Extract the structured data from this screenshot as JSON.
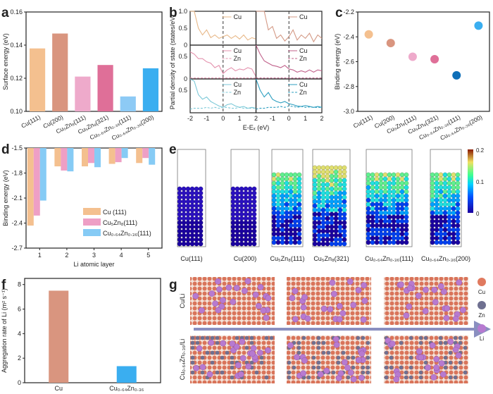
{
  "panel_labels": [
    "a",
    "b",
    "c",
    "d",
    "e",
    "f",
    "g"
  ],
  "chart_data": [
    {
      "id": "a",
      "type": "bar",
      "categories": [
        "Cu(111)",
        "Cu(200)",
        "Cu₅Zn₈(111)",
        "Cu₅Zn₈(321)",
        "Cu₀.₆₄Zn₀.₃₆(111)",
        "Cu₀.₆₄Zn₀.₃₆(200)"
      ],
      "values": [
        0.138,
        0.147,
        0.121,
        0.128,
        0.109,
        0.126
      ],
      "colors": [
        "#f4c08f",
        "#d9957f",
        "#eeaacb",
        "#df6f98",
        "#8dcaf5",
        "#3aaef0"
      ],
      "ylabel": "Surface energy (eV)",
      "ylim": [
        0.1,
        0.16
      ],
      "yticks": [
        "0.10",
        "0.12",
        "0.14",
        "0.16"
      ]
    },
    {
      "id": "b",
      "type": "line",
      "xlabel": "E-Eₓ (eV)",
      "ylabel": "Partial density of state (states/eV)",
      "xlim": [
        -2,
        2
      ],
      "xticks": [
        "-2",
        "-1",
        "0",
        "1",
        "2"
      ],
      "yticks_top": [
        "0",
        "0.5",
        "1.0"
      ],
      "yticks_mid": [
        "0",
        "0.5"
      ],
      "yticks_bot": [
        "0.5"
      ],
      "x": [
        -2,
        -1.75,
        -1.5,
        -1.25,
        -1,
        -0.75,
        -0.5,
        -0.25,
        0,
        0.25,
        0.5,
        0.75,
        1,
        1.25,
        1.5,
        1.75,
        2
      ],
      "panels": [
        {
          "series": [
            {
              "name": "Cu",
              "color": "#e8b888",
              "values": [
                1.2,
                1.2,
                0.5,
                0.3,
                0.45,
                0.22,
                0.3,
                0.2,
                0.25,
                0.3,
                0.2,
                0.28,
                0.18,
                0.3,
                0.15,
                0.22,
                0.18
              ]
            }
          ]
        },
        {
          "series": [
            {
              "name": "Cu",
              "color": "#d49a86",
              "values": [
                1.2,
                1.2,
                1.0,
                0.45,
                0.55,
                0.2,
                0.3,
                0.12,
                0.25,
                0.45,
                0.15,
                0.3,
                0.2,
                0.35,
                0.1,
                0.3,
                0.2
              ]
            }
          ]
        },
        {
          "series": [
            {
              "name": "Cu",
              "color": "#e491ad",
              "values": [
                0.6,
                0.55,
                0.45,
                0.45,
                0.38,
                0.35,
                0.25,
                0.3,
                0.12,
                0.2,
                0.25,
                0.18,
                0.22,
                0.2,
                0.25,
                0.22,
                0.05
              ]
            },
            {
              "name": "Zn",
              "color": "#e491ad",
              "dash": true,
              "values": [
                0.02,
                0.02,
                0.02,
                0.02,
                0.02,
                0.02,
                0.02,
                0.02,
                0.02,
                0.02,
                0.02,
                0.02,
                0.02,
                0.02,
                0.02,
                0.02,
                0.02
              ]
            }
          ]
        },
        {
          "series": [
            {
              "name": "Cu",
              "color": "#c0608a",
              "values": [
                0.8,
                0.55,
                0.4,
                0.35,
                0.3,
                0.28,
                0.25,
                0.3,
                0.22,
                0.2,
                0.15,
                0.18,
                0.15,
                0.2,
                0.15,
                0.2,
                0.18
              ]
            },
            {
              "name": "Zn",
              "color": "#c0608a",
              "dash": true,
              "values": [
                0.02,
                0.02,
                0.02,
                0.02,
                0.02,
                0.02,
                0.02,
                0.02,
                0.02,
                0.02,
                0.02,
                0.02,
                0.02,
                0.02,
                0.02,
                0.02,
                0.02
              ]
            }
          ]
        },
        {
          "series": [
            {
              "name": "Cu",
              "color": "#7cc9d8",
              "values": [
                0.9,
                0.7,
                0.4,
                0.3,
                0.35,
                0.25,
                0.2,
                0.15,
                0.12,
                0.18,
                0.2,
                0.15,
                0.12,
                0.14,
                0.1,
                0.12,
                0.1
              ]
            },
            {
              "name": "Zn",
              "color": "#7cc9d8",
              "dash": true,
              "values": [
                0.08,
                0.1,
                0.1,
                0.1,
                0.12,
                0.1,
                0.12,
                0.1,
                0.12,
                0.12,
                0.1,
                0.1,
                0.12,
                0.1,
                0.1,
                0.1,
                0.1
              ]
            }
          ]
        },
        {
          "series": [
            {
              "name": "Cu",
              "color": "#2f9fc0",
              "values": [
                0.9,
                0.5,
                0.35,
                0.45,
                0.3,
                0.25,
                0.22,
                0.25,
                0.2,
                0.18,
                0.15,
                0.14,
                0.16,
                0.14,
                0.12,
                0.14,
                0.12
              ]
            },
            {
              "name": "Zn",
              "color": "#2f9fc0",
              "dash": true,
              "values": [
                0.08,
                0.1,
                0.1,
                0.12,
                0.12,
                0.12,
                0.14,
                0.12,
                0.15,
                0.14,
                0.12,
                0.14,
                0.12,
                0.13,
                0.12,
                0.12,
                0.12
              ]
            }
          ]
        }
      ]
    },
    {
      "id": "c",
      "type": "scatter",
      "categories": [
        "Cu(111)",
        "Cu(200)",
        "Cu₅Zn₈(111)",
        "Cu₅Zn₈(321)",
        "Cu₀.₆₄Zn₀.₃₆(111)",
        "Cu₀.₆₄Zn₀.₃₆(200)"
      ],
      "values": [
        -2.38,
        -2.45,
        -2.56,
        -2.58,
        -2.71,
        -2.31
      ],
      "colors": [
        "#f4c08f",
        "#d9957f",
        "#eeaacb",
        "#df6f98",
        "#0f6fb8",
        "#3aaef0"
      ],
      "ylabel": "Binding energy (eV)",
      "ylim": [
        -3.0,
        -2.2
      ],
      "yticks": [
        "-3.0",
        "-2.8",
        "-2.6",
        "-2.4",
        "-2.2"
      ]
    },
    {
      "id": "d",
      "type": "bar",
      "categories": [
        "1",
        "2",
        "3",
        "4",
        "5"
      ],
      "series": [
        {
          "name": "Cu (111)",
          "color": "#f4c08f",
          "values": [
            -2.43,
            -1.72,
            -1.72,
            -1.69,
            -1.68
          ]
        },
        {
          "name": "Cu₅Zn₈(111)",
          "color": "#ee9fc5",
          "values": [
            -2.31,
            -1.77,
            -1.68,
            -1.67,
            -1.62
          ]
        },
        {
          "name": "Cu₀.₆₄Zn₀.₃₆(111)",
          "color": "#86cbf5",
          "values": [
            -2.13,
            -1.78,
            -1.73,
            -1.62,
            -1.7
          ]
        }
      ],
      "xlabel": "Li atomic layer",
      "ylabel": "Binding energy (eV)",
      "ylim": [
        -2.7,
        -1.5
      ],
      "yticks": [
        "-2.7",
        "-2.4",
        "-2.1",
        "-1.8",
        "-1.5"
      ],
      "legend": "bottom-right"
    },
    {
      "id": "f",
      "type": "bar",
      "categories": [
        "Cu",
        "Cu₀.₆₄Zn₀.₃₆"
      ],
      "values": [
        7.5,
        1.35
      ],
      "colors": [
        "#d9957f",
        "#3aaef0"
      ],
      "ylabel": "Aggregation rate of Li (m² s⁻¹)",
      "ylim": [
        0,
        8.5
      ],
      "yticks": [
        "0",
        "2",
        "4",
        "6",
        "8"
      ]
    }
  ],
  "panel_e": {
    "labels": [
      "Cu(111)",
      "Cu(200)",
      "Cu₅Zn₈(111)",
      "Cu₅Zn₈(321)",
      "Cu₀.₆₄Zn₀.₃₆(111)",
      "Cu₀.₆₄Zn₀.₃₆(200)"
    ],
    "colorbar_ticks": [
      "0.2",
      "0.1",
      "0"
    ]
  },
  "panel_g": {
    "row_labels": [
      "Cu/Li",
      "Cu₀.₆₄Zn₀.₃₆/Li"
    ],
    "legend": [
      {
        "name": "Cu",
        "color": "#e07a5f"
      },
      {
        "name": "Zn",
        "color": "#6f7090"
      },
      {
        "name": "Li",
        "color": "#b77ad0"
      }
    ]
  }
}
